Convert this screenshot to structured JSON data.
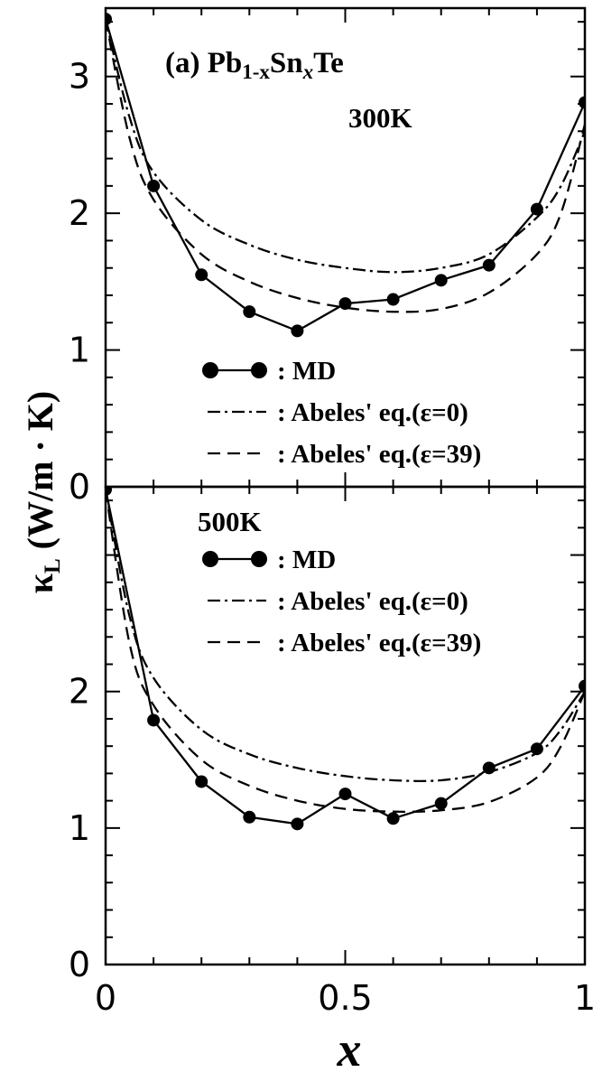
{
  "figure": {
    "ylabel": "κL (W/m · K)",
    "ylabel_main": "κ",
    "ylabel_sub": "L",
    "ylabel_rest": " (W/m · K)",
    "xlabel": "x"
  },
  "chart_data": [
    {
      "type": "line",
      "panel": "top",
      "title": "(a) Pb1-xSnxTe",
      "title_parts": {
        "prefix": "(a) Pb",
        "sub1": "1-x",
        "mid": "Sn",
        "sub2": "x",
        "suffix": "Te"
      },
      "annotation": "300K",
      "xlim": [
        0,
        1
      ],
      "ylim": [
        0,
        3.5
      ],
      "yticks": [
        "0",
        "1",
        "2",
        "3"
      ],
      "legend_position": "lower-center",
      "series": [
        {
          "name": ": MD",
          "style": "solid-markers",
          "x": [
            0,
            0.1,
            0.2,
            0.3,
            0.4,
            0.5,
            0.6,
            0.7,
            0.8,
            0.9,
            1.0
          ],
          "y": [
            3.42,
            2.2,
            1.55,
            1.28,
            1.14,
            1.34,
            1.37,
            1.51,
            1.62,
            2.03,
            2.81
          ]
        },
        {
          "name": ": Abeles' eq.(ε=0)",
          "style": "dash-dot",
          "x": [
            0,
            0.05,
            0.1,
            0.2,
            0.3,
            0.4,
            0.5,
            0.6,
            0.7,
            0.8,
            0.9,
            0.95,
            1.0
          ],
          "y": [
            3.42,
            2.7,
            2.3,
            1.95,
            1.77,
            1.66,
            1.6,
            1.57,
            1.6,
            1.7,
            1.97,
            2.2,
            2.6
          ]
        },
        {
          "name": ": Abeles' eq.(ε=39)",
          "style": "dashed",
          "x": [
            0,
            0.05,
            0.1,
            0.2,
            0.3,
            0.4,
            0.5,
            0.6,
            0.7,
            0.8,
            0.9,
            0.95,
            1.0
          ],
          "y": [
            3.42,
            2.55,
            2.1,
            1.7,
            1.5,
            1.38,
            1.31,
            1.28,
            1.3,
            1.42,
            1.7,
            2.0,
            2.65
          ]
        }
      ]
    },
    {
      "type": "line",
      "panel": "bottom",
      "annotation": "500K",
      "xlim": [
        0,
        1
      ],
      "ylim": [
        0,
        3.5
      ],
      "yticks": [
        "0",
        "1",
        "2"
      ],
      "xticks": [
        "0",
        "0.5",
        "1"
      ],
      "legend_position": "upper-center",
      "series": [
        {
          "name": ": MD",
          "style": "solid-markers",
          "x": [
            0,
            0.1,
            0.2,
            0.3,
            0.4,
            0.5,
            0.6,
            0.7,
            0.8,
            0.9,
            1.0
          ],
          "y": [
            3.48,
            1.79,
            1.34,
            1.08,
            1.03,
            1.25,
            1.07,
            1.18,
            1.44,
            1.58,
            2.04
          ]
        },
        {
          "name": ": Abeles' eq.(ε=0)",
          "style": "dash-dot",
          "x": [
            0,
            0.05,
            0.1,
            0.2,
            0.3,
            0.4,
            0.5,
            0.6,
            0.7,
            0.8,
            0.9,
            0.95,
            1.0
          ],
          "y": [
            3.48,
            2.55,
            2.1,
            1.72,
            1.54,
            1.44,
            1.38,
            1.35,
            1.35,
            1.41,
            1.55,
            1.72,
            2.0
          ]
        },
        {
          "name": ": Abeles' eq.(ε=39)",
          "style": "dashed",
          "x": [
            0,
            0.05,
            0.1,
            0.2,
            0.3,
            0.4,
            0.5,
            0.6,
            0.7,
            0.8,
            0.9,
            0.95,
            1.0
          ],
          "y": [
            3.48,
            2.35,
            1.9,
            1.5,
            1.31,
            1.2,
            1.14,
            1.12,
            1.13,
            1.19,
            1.37,
            1.6,
            2.0
          ]
        }
      ]
    }
  ]
}
